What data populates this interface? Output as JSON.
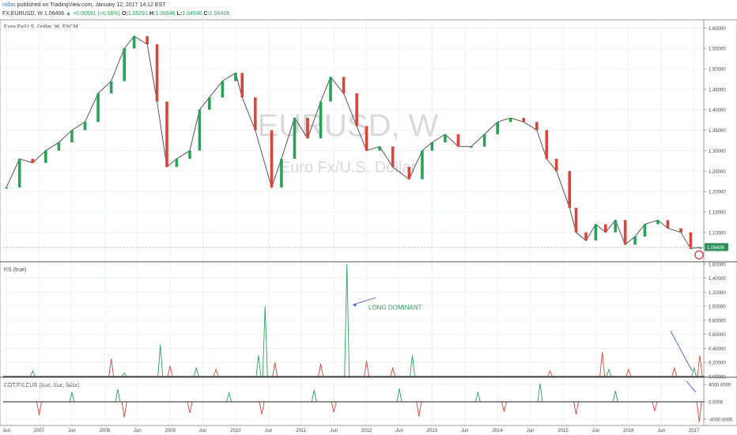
{
  "header": {
    "user": "rollas",
    "published": "published on TradingView.com, January 12, 2017 14:12 EST",
    "symbol": "FX:EURUSD, W",
    "last": "1.06406",
    "change_arrow": "▲",
    "change": "+0.00591 (+0.56%)",
    "o_label": "O:",
    "o": "1.05291",
    "h_label": "H:",
    "h": "1.06846",
    "l_label": "L:",
    "l": "1.04540",
    "c_label": "C:",
    "c": "1.06406"
  },
  "colors": {
    "up": "#2aa05a",
    "down": "#d9443c",
    "grid": "#eef1f5",
    "annotation_green": "#2aa05a",
    "arrow_blue": "#5670c8",
    "price_tag": "#2f8f5b"
  },
  "chart_data": [
    {
      "type": "candlestick",
      "title": "Euro Fx/U.S. Dollar, W, FXCM",
      "watermark": "EURUSD, W",
      "watermark_sub": "Euro Fx/U.S. Dollar",
      "yticks": [
        "1.60000",
        "1.55000",
        "1.50000",
        "1.45000",
        "1.40000",
        "1.35000",
        "1.30000",
        "1.25000",
        "1.20000",
        "1.15000",
        "1.10000"
      ],
      "ylim": [
        1.03,
        1.62
      ],
      "xlim": [
        2006.35,
        2017.05
      ],
      "price_tag": "1.06406",
      "series": [
        {
          "x": [
            2006.4,
            2006.6,
            2006.8,
            2007.0,
            2007.2,
            2007.4,
            2007.6,
            2007.8,
            2008.0,
            2008.2,
            2008.35,
            2008.55,
            2008.7,
            2008.85,
            2009.0,
            2009.2,
            2009.35,
            2009.5,
            2009.7,
            2009.9,
            2010.0,
            2010.2,
            2010.45,
            2010.6,
            2010.8,
            2011.0,
            2011.2,
            2011.35,
            2011.55,
            2011.75,
            2011.9,
            2012.1,
            2012.3,
            2012.55,
            2012.75,
            2012.9,
            2013.1,
            2013.3,
            2013.5,
            2013.7,
            2013.9,
            2014.1,
            2014.3,
            2014.5,
            2014.65,
            2014.8,
            2015.0,
            2015.1,
            2015.25,
            2015.4,
            2015.55,
            2015.7,
            2015.85,
            2016.0,
            2016.15,
            2016.35,
            2016.5,
            2016.7,
            2016.85,
            2017.0
          ],
          "y": [
            1.21,
            1.28,
            1.27,
            1.3,
            1.32,
            1.35,
            1.37,
            1.44,
            1.47,
            1.55,
            1.58,
            1.56,
            1.42,
            1.26,
            1.28,
            1.3,
            1.4,
            1.43,
            1.47,
            1.49,
            1.43,
            1.35,
            1.21,
            1.28,
            1.38,
            1.33,
            1.42,
            1.48,
            1.44,
            1.36,
            1.3,
            1.31,
            1.26,
            1.23,
            1.3,
            1.32,
            1.34,
            1.31,
            1.31,
            1.34,
            1.37,
            1.38,
            1.37,
            1.35,
            1.28,
            1.25,
            1.16,
            1.1,
            1.08,
            1.12,
            1.1,
            1.13,
            1.07,
            1.09,
            1.12,
            1.13,
            1.11,
            1.1,
            1.06,
            1.064
          ]
        }
      ]
    },
    {
      "type": "line",
      "title": "RS (true)",
      "yticks": [
        "1.60000",
        "1.40000",
        "1.20000",
        "1.00000",
        "0.80000",
        "0.60000",
        "0.40000",
        "0.20000",
        "0.00000"
      ],
      "ylim": [
        0,
        1.62
      ],
      "annotation": "LONG DOMINANT",
      "series": [
        {
          "color": "green",
          "x": [
            2006.8,
            2008.2,
            2008.75,
            2009.3,
            2010.25,
            2010.35,
            2011.6,
            2012.6,
            2015.6,
            2016.9
          ],
          "y": [
            0.08,
            0.05,
            0.45,
            0.12,
            0.3,
            1.0,
            1.6,
            0.3,
            0.1,
            0.12
          ]
        },
        {
          "color": "red",
          "x": [
            2008.0,
            2008.9,
            2009.6,
            2010.5,
            2011.2,
            2011.9,
            2012.3,
            2014.7,
            2015.5,
            2015.9,
            2016.6,
            2016.99
          ],
          "y": [
            0.25,
            0.15,
            0.1,
            0.2,
            0.18,
            0.22,
            0.12,
            0.08,
            0.35,
            0.1,
            0.12,
            0.3
          ]
        }
      ]
    },
    {
      "type": "line",
      "title": "COT/FX:EUR (true, true, false)",
      "yticks": [
        "4000.0000",
        "0.0000",
        "-4000.0000"
      ],
      "ylim": [
        -5500,
        5500
      ],
      "xticks": [
        "Jun",
        "2007",
        "Jun",
        "2008",
        "Jun",
        "2009",
        "Jun",
        "2010",
        "Jun",
        "2011",
        "Jun",
        "2012",
        "Jun",
        "2013",
        "Jun",
        "2014",
        "Jun",
        "2015",
        "Jun",
        "2016",
        "Jun",
        "2017"
      ],
      "series": [
        {
          "color": "green",
          "x": [
            2007.4,
            2008.1,
            2009.8,
            2011.1,
            2012.4,
            2013.6,
            2014.55,
            2015.7
          ],
          "y": [
            2200,
            2900,
            2100,
            2700,
            3100,
            2300,
            4200,
            2500
          ]
        },
        {
          "color": "red",
          "x": [
            2006.9,
            2008.2,
            2009.2,
            2010.3,
            2011.4,
            2012.7,
            2014.0,
            2015.1,
            2016.3,
            2016.98
          ],
          "y": [
            -3100,
            -3600,
            -2600,
            -2900,
            -2400,
            -3400,
            -2300,
            -2900,
            -2100,
            -4700
          ]
        }
      ]
    }
  ]
}
